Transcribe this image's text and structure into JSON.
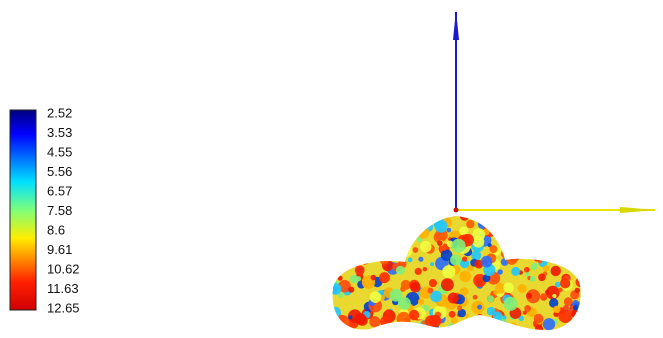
{
  "colorbar": {
    "labels": [
      2.52,
      3.53,
      4.55,
      5.56,
      6.57,
      7.58,
      8.6,
      9.61,
      10.62,
      11.63,
      12.65
    ]
  }
}
